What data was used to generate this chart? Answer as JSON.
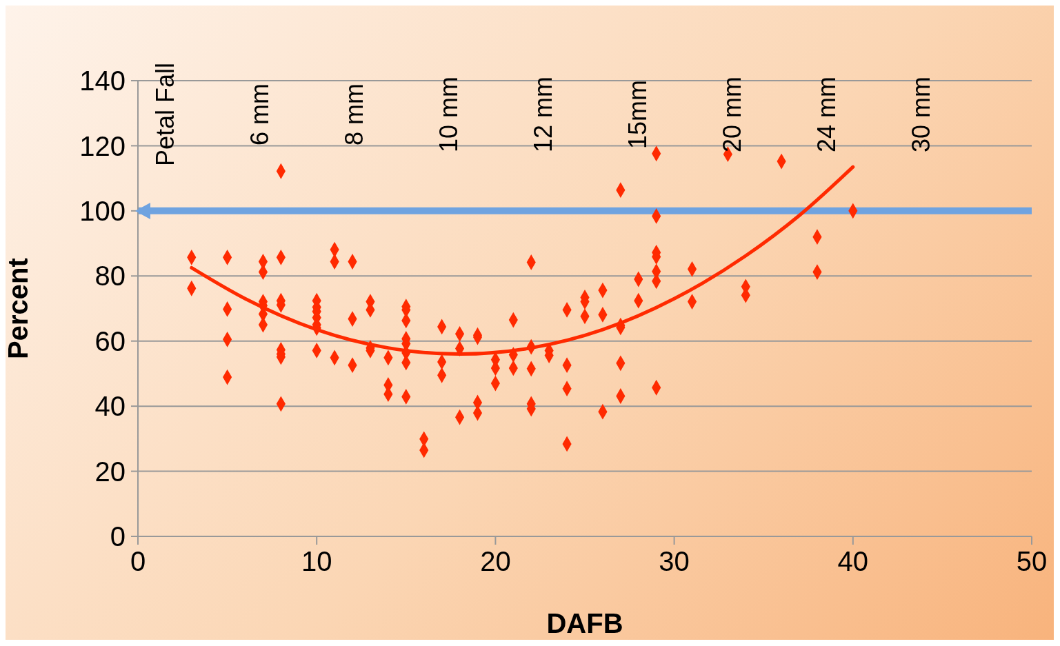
{
  "chart_data": {
    "type": "scatter",
    "xlabel": "DAFB",
    "ylabel": "Percent",
    "xlim": [
      0,
      50
    ],
    "xticks": [
      0,
      10,
      20,
      30,
      40,
      50
    ],
    "ylim": [
      0,
      140
    ],
    "yticks": [
      0,
      20,
      40,
      60,
      80,
      100,
      120,
      140
    ],
    "grid": "y",
    "annotations": [
      "Petal Fall",
      "6 mm",
      "8 mm",
      "10 mm",
      "12 mm",
      "15mm",
      "20 mm",
      "24 mm",
      "30 mm"
    ],
    "ref_lines": [
      {
        "axis": "y",
        "value": 100,
        "color": "#6fa3e0"
      }
    ],
    "series": [
      {
        "marker": "diamond",
        "color": "#ff2a00",
        "x": [
          3,
          3,
          5,
          5,
          5,
          5,
          7,
          7,
          7,
          7,
          7,
          7,
          8,
          8,
          8,
          8,
          8,
          8,
          8,
          8,
          10,
          10,
          10,
          10,
          10,
          10,
          10,
          11,
          11,
          11,
          12,
          12,
          12,
          13,
          13,
          13,
          13,
          14,
          14,
          14,
          15,
          15,
          15,
          15,
          15,
          15,
          15,
          15,
          16,
          16,
          17,
          17,
          17,
          18,
          18,
          18,
          19,
          19,
          19,
          19,
          20,
          20,
          20,
          21,
          21,
          21,
          22,
          22,
          22,
          22,
          22,
          23,
          23,
          24,
          24,
          24,
          24,
          25,
          25,
          25,
          26,
          26,
          26,
          27,
          27,
          27,
          27,
          27,
          28,
          28,
          29,
          29,
          29,
          29,
          29,
          29,
          29,
          31,
          31,
          33,
          34,
          34,
          36,
          38,
          38,
          40
        ],
        "values": [
          85.7,
          76.2,
          85.7,
          69.8,
          60.5,
          48.9,
          84.4,
          81.2,
          72.1,
          70.9,
          68.3,
          65,
          112.2,
          85.7,
          72.4,
          71.1,
          57.3,
          56,
          55.1,
          40.7,
          72.4,
          70.4,
          69.1,
          67.2,
          65,
          64,
          57.1,
          88.1,
          84.4,
          54.9,
          84.4,
          66.8,
          52.6,
          72.1,
          69.6,
          57.9,
          57.1,
          54.9,
          46.5,
          43.7,
          70.6,
          69.6,
          66.3,
          60.7,
          59.2,
          56.4,
          53.4,
          42.9,
          29.9,
          26.5,
          64.4,
          53.6,
          49.5,
          62.2,
          57.7,
          36.6,
          61.8,
          61.2,
          41.1,
          37.9,
          54.3,
          51.7,
          47,
          66.5,
          55.8,
          51.7,
          84.2,
          58.2,
          51.5,
          40.7,
          39.2,
          57.1,
          55.6,
          69.6,
          52.6,
          45.4,
          28.4,
          73.4,
          72.1,
          67.6,
          75.6,
          68.1,
          38.3,
          106.4,
          64.8,
          64.2,
          53.2,
          43.1,
          79,
          72.4,
          117.6,
          98.4,
          87.2,
          85.9,
          81.4,
          78.4,
          45.7,
          82.1,
          72.1,
          117.4,
          76.7,
          74.1,
          115.2,
          92,
          81.2,
          100
        ]
      },
      {
        "type": "line",
        "marker": "none",
        "color": "#ff2a00",
        "x": [
          3,
          6,
          10,
          14,
          18,
          22,
          26,
          30,
          34,
          37,
          40
        ],
        "values": [
          82.5,
          73,
          63.5,
          57.9,
          56,
          57.9,
          63.5,
          73,
          86.2,
          98.6,
          113.5
        ]
      }
    ]
  }
}
